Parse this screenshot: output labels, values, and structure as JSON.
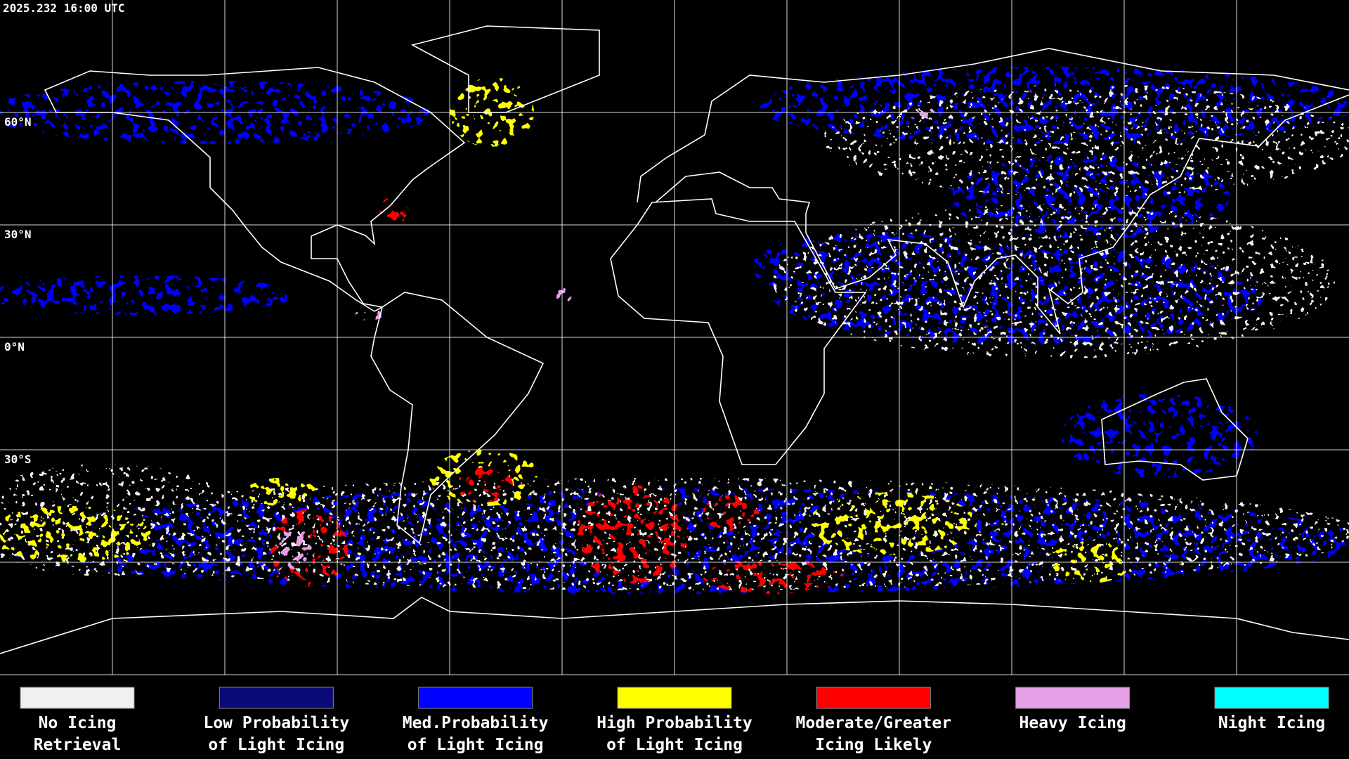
{
  "header": {
    "timestamp": "2025.232 16:00 UTC"
  },
  "map": {
    "latitude_labels": [
      "60°N",
      "30°N",
      "0°N",
      "30°S"
    ]
  },
  "legend": {
    "items": [
      {
        "lines": [
          "No Icing",
          "Retrieval"
        ],
        "color": "#f0f0f0"
      },
      {
        "lines": [
          "Low Probability",
          "of Light Icing"
        ],
        "color": "#0a0a78"
      },
      {
        "lines": [
          "Med.Probability",
          "of Light Icing"
        ],
        "color": "#0000ff"
      },
      {
        "lines": [
          "High Probability",
          "of Light Icing"
        ],
        "color": "#ffff00"
      },
      {
        "lines": [
          "Moderate/Greater",
          "Icing Likely"
        ],
        "color": "#ff0000"
      },
      {
        "lines": [
          "Heavy Icing"
        ],
        "color": "#e6a0e6"
      },
      {
        "lines": [
          "Night Icing"
        ],
        "color": "#00ffff"
      }
    ]
  }
}
